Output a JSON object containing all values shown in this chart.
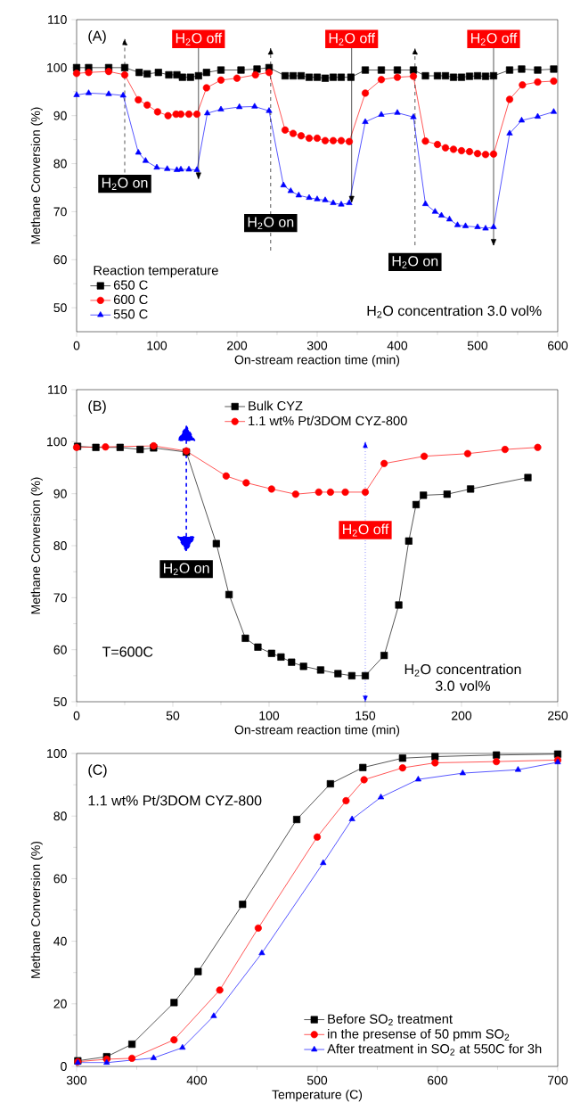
{
  "chart_data": [
    {
      "type": "line",
      "xlabel": "On-stream reaction time (min)",
      "ylabel": "Methane Conversion (%)",
      "legend_title": "Reaction temperature",
      "legend": "bottom left",
      "xlim": [
        0,
        600
      ],
      "xticks": [
        0,
        100,
        200,
        300,
        400,
        500,
        600
      ],
      "ylim": [
        45,
        110
      ],
      "yticks": [
        50,
        60,
        70,
        80,
        90,
        100,
        110
      ],
      "annotations": [
        "(A)",
        "H$_{2}$O concentration 3.0 vol%"
      ],
      "ref_lines": [
        {
          "axis": "x",
          "value": 152,
          "label": "H$_{2}$O off",
          "color": "#000000",
          "line_style": "solid"
        },
        {
          "axis": "x",
          "value": 343,
          "label": "H$_{2}$O off",
          "color": "#000000",
          "line_style": "solid"
        },
        {
          "axis": "x",
          "value": 520,
          "label": "H$_{2}$O off",
          "color": "#000000",
          "line_style": "solid"
        },
        {
          "axis": "x",
          "value": 60,
          "label": "H$_{2}$O on",
          "color": "#000000",
          "line_style": "dashed"
        },
        {
          "axis": "x",
          "value": 242,
          "label": "H$_{2}$O on",
          "color": "#000000",
          "line_style": "dashed"
        },
        {
          "axis": "x",
          "value": 422,
          "label": "H$_{2}$O on",
          "color": "#000000",
          "line_style": "dashed"
        }
      ],
      "series": [
        {
          "name": "650 C",
          "color": "#000000",
          "marker": "square",
          "x": [
            0,
            15,
            40,
            60,
            78,
            88,
            102,
            115,
            125,
            132,
            142,
            152,
            162,
            180,
            205,
            225,
            240,
            260,
            270,
            280,
            290,
            300,
            310,
            320,
            330,
            342,
            360,
            380,
            400,
            420,
            435,
            450,
            460,
            470,
            480,
            490,
            500,
            510,
            520,
            540,
            555,
            575,
            595
          ],
          "values": [
            100,
            100,
            100,
            100,
            99,
            98.7,
            99,
            98.5,
            98.5,
            98,
            98,
            98.3,
            99,
            99.5,
            99.5,
            99.7,
            100,
            98.3,
            98.3,
            98.3,
            98,
            98,
            97.8,
            98,
            98,
            98,
            99.5,
            99.5,
            99.5,
            99.5,
            98.3,
            98.3,
            98.3,
            98,
            98,
            98.2,
            98.3,
            98.2,
            98.3,
            99.5,
            99.7,
            99.5,
            99.7
          ]
        },
        {
          "name": "600 C",
          "color": "#ff0000",
          "marker": "circle",
          "x": [
            0,
            15,
            40,
            60,
            77,
            88,
            101,
            114,
            124,
            130,
            140,
            150,
            162,
            180,
            200,
            223,
            240,
            260,
            270,
            280,
            290,
            300,
            310,
            320,
            330,
            340,
            360,
            380,
            400,
            420,
            435,
            450,
            460,
            470,
            480,
            490,
            500,
            510,
            520,
            540,
            556,
            575,
            595
          ],
          "values": [
            98.8,
            99,
            99.2,
            98.5,
            93.3,
            92.2,
            90.8,
            90,
            90.3,
            90.3,
            90.3,
            90.3,
            95.8,
            97.4,
            97.8,
            98.5,
            99,
            87,
            86.3,
            85.8,
            85.3,
            85.3,
            84.8,
            84.8,
            84.8,
            84.6,
            94.7,
            97.5,
            98,
            98.2,
            84.7,
            84,
            83.3,
            83,
            82.7,
            82.5,
            82.1,
            81.9,
            82,
            93.4,
            96.4,
            97,
            97.2
          ]
        },
        {
          "name": "550 C",
          "color": "#0000ff",
          "marker": "triangle",
          "x": [
            0,
            15,
            40,
            58,
            77,
            86,
            100,
            113,
            125,
            130,
            140,
            150,
            163,
            180,
            203,
            222,
            240,
            258,
            267,
            277,
            290,
            300,
            310,
            320,
            330,
            340,
            360,
            380,
            400,
            420,
            435,
            447,
            455,
            465,
            475,
            485,
            500,
            510,
            520,
            540,
            555,
            575,
            595
          ],
          "values": [
            94.3,
            94.7,
            94.5,
            94.2,
            82.3,
            80.6,
            79.2,
            78.9,
            78.7,
            78.8,
            78.8,
            78.7,
            90.5,
            91.3,
            91.8,
            91.9,
            91,
            75.5,
            74.3,
            73.4,
            72.9,
            72.6,
            72.4,
            71.8,
            71.5,
            71.8,
            88.7,
            90.2,
            90.6,
            89.7,
            71.6,
            70,
            69.2,
            68.4,
            67.2,
            67,
            66.8,
            66.5,
            66.8,
            86.3,
            89,
            89.8,
            90.8
          ]
        }
      ]
    },
    {
      "type": "line",
      "xlabel": "On-stream reaction time (min)",
      "ylabel": "Methane Conversion (%)",
      "legend": "top",
      "xlim": [
        0,
        250
      ],
      "xticks": [
        0,
        50,
        100,
        150,
        200,
        250
      ],
      "ylim": [
        50,
        110
      ],
      "yticks": [
        50,
        60,
        70,
        80,
        90,
        100,
        110
      ],
      "annotations": [
        "(B)",
        "T=600C",
        "H$_{2}$O concentration 3.0 vol%"
      ],
      "ref_lines": [
        {
          "axis": "x",
          "value": 150,
          "label": "H$_{2}$O off",
          "color": "#0000ff",
          "line_style": "dotted"
        },
        {
          "axis": "x",
          "value": 57,
          "label": "H$_{2}$O on",
          "color": "#0000ff",
          "line_style": "dashed"
        }
      ],
      "series": [
        {
          "name": "Bulk CYZ",
          "color": "#000000",
          "marker": "square",
          "x": [
            0.5,
            10,
            22.6,
            33,
            40,
            57,
            72.6,
            79.2,
            87.7,
            94.2,
            101.3,
            106.2,
            111.7,
            117.9,
            126.8,
            135.8,
            143,
            150,
            159.8,
            167.4,
            172.6,
            176.4,
            180.2,
            192.5,
            204.7,
            234.5
          ],
          "values": [
            99.1,
            98.9,
            98.9,
            98.5,
            98.8,
            98,
            80.4,
            70.6,
            62.2,
            60.5,
            59.3,
            58.6,
            57.6,
            56.8,
            56.1,
            55.4,
            55,
            55,
            58.9,
            68.6,
            80.9,
            87.9,
            89.7,
            89.9,
            90.9,
            93.1
          ]
        },
        {
          "name": "1.1 wt% Pt/3DOM CYZ-800",
          "color": "#ff0000",
          "marker": "circle",
          "x": [
            0,
            15,
            40,
            57,
            77.7,
            88.1,
            101.3,
            113.8,
            125.8,
            131.9,
            139.6,
            150,
            159.8,
            180.6,
            203.2,
            222.6,
            239.6
          ],
          "values": [
            98.9,
            99,
            99.2,
            98.2,
            93.4,
            92.1,
            90.9,
            89.9,
            90.3,
            90.3,
            90.3,
            90.3,
            95.8,
            97.2,
            97.7,
            98.5,
            98.9
          ]
        }
      ]
    },
    {
      "type": "line",
      "xlabel": "Temperature (C)",
      "ylabel": "Methane Conversion (%)",
      "legend": "bottom right",
      "xlim": [
        300,
        700
      ],
      "xticks": [
        300,
        400,
        500,
        600,
        700
      ],
      "ylim": [
        0,
        100
      ],
      "yticks": [
        0,
        20,
        40,
        60,
        80,
        100
      ],
      "annotations": [
        "(C)",
        "1.1 wt% Pt/3DOM CYZ-800"
      ],
      "series": [
        {
          "name": "Before SO$_{2}$ treatment",
          "color": "#000000",
          "marker": "square",
          "x": [
            301,
            325,
            346,
            381,
            401,
            438,
            483,
            511,
            538,
            571,
            598,
            649,
            700
          ],
          "values": [
            1.8,
            3.1,
            7.1,
            20.4,
            30.3,
            51.8,
            78.9,
            90.3,
            95.5,
            98.5,
            99,
            99.5,
            99.8
          ]
        },
        {
          "name": "in the presense of 50 pmm SO$_{2}$",
          "color": "#ff0000",
          "marker": "circle",
          "x": [
            301,
            325,
            346,
            381,
            419,
            451,
            500,
            524,
            539,
            571,
            598,
            649,
            700
          ],
          "values": [
            1.5,
            2.3,
            2.6,
            8.5,
            24.4,
            44.2,
            73.3,
            84.9,
            91.6,
            95.4,
            97,
            97.4,
            97.9
          ]
        },
        {
          "name": "After treatment in SO$_{2}$ at 550C for 3h",
          "color": "#0000ff",
          "marker": "triangle",
          "x": [
            301,
            325,
            364,
            388,
            414,
            454,
            505,
            529,
            553,
            584,
            621,
            667,
            700
          ],
          "values": [
            1.2,
            1.2,
            2.7,
            6,
            16.1,
            36.2,
            65,
            79,
            86,
            91.7,
            93.7,
            94.8,
            97.2
          ]
        }
      ]
    }
  ]
}
